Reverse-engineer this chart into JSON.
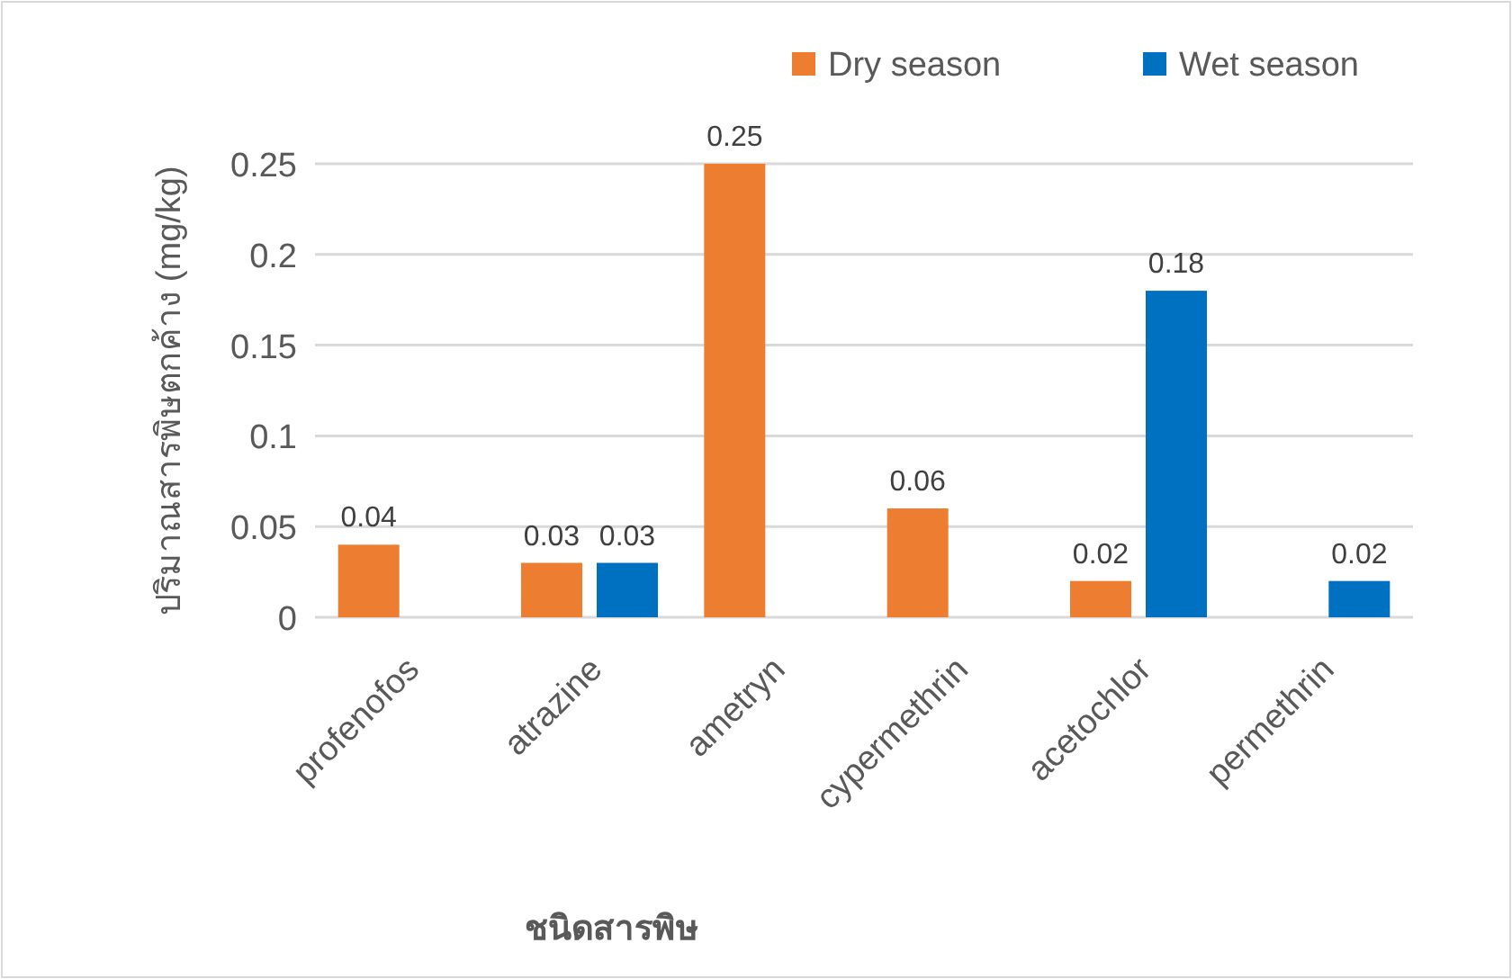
{
  "chart_data": {
    "type": "bar",
    "xlabel": "ชนิดสารพิษ",
    "ylabel": "ปริมาณสารพิษตกค้าง (mg/kg)",
    "categories": [
      "profenofos",
      "atrazine",
      "ametryn",
      "cypermethrin",
      "acetochlor",
      "permethrin"
    ],
    "series": [
      {
        "name": "Dry season",
        "color": "#ed7d31",
        "values": [
          0.04,
          0.03,
          0.25,
          0.06,
          0.02,
          null
        ]
      },
      {
        "name": "Wet season",
        "color": "#0070c0",
        "values": [
          null,
          0.03,
          null,
          null,
          0.18,
          0.02
        ]
      }
    ],
    "ylim": [
      0,
      0.25
    ],
    "yticks": [
      0,
      0.05,
      0.1,
      0.15,
      0.2,
      0.25
    ],
    "grid": "y",
    "legend": "top right",
    "data_labels": true
  }
}
